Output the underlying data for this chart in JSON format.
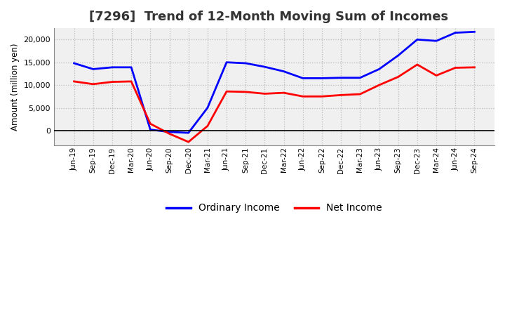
{
  "title": "[7296]  Trend of 12-Month Moving Sum of Incomes",
  "ylabel": "Amount (million yen)",
  "labels": [
    "Jun-19",
    "Sep-19",
    "Dec-19",
    "Mar-20",
    "Jun-20",
    "Sep-20",
    "Dec-20",
    "Mar-21",
    "Jun-21",
    "Sep-21",
    "Dec-21",
    "Mar-22",
    "Jun-22",
    "Sep-22",
    "Dec-22",
    "Mar-23",
    "Jun-23",
    "Sep-23",
    "Dec-23",
    "Mar-24",
    "Jun-24",
    "Sep-24"
  ],
  "ordinary_income": [
    14800,
    13500,
    13900,
    13900,
    200,
    -300,
    -500,
    5000,
    15000,
    14800,
    14000,
    13000,
    11500,
    11500,
    11600,
    11600,
    13500,
    16500,
    20000,
    19700,
    21500,
    21700
  ],
  "net_income": [
    10800,
    10200,
    10700,
    10800,
    1500,
    -700,
    -2500,
    1000,
    8600,
    8500,
    8100,
    8300,
    7500,
    7500,
    7800,
    8000,
    10000,
    11800,
    14500,
    12100,
    13800,
    13900
  ],
  "ordinary_color": "#0000ff",
  "net_color": "#ff0000",
  "background_color": "#ffffff",
  "plot_bg_color": "#f0f0f0",
  "grid_color": "#bbbbbb",
  "ylim_min": -3200,
  "ylim_max": 22500,
  "yticks": [
    0,
    5000,
    10000,
    15000,
    20000
  ],
  "title_fontsize": 13,
  "title_color": "#333333",
  "legend_labels": [
    "Ordinary Income",
    "Net Income"
  ]
}
